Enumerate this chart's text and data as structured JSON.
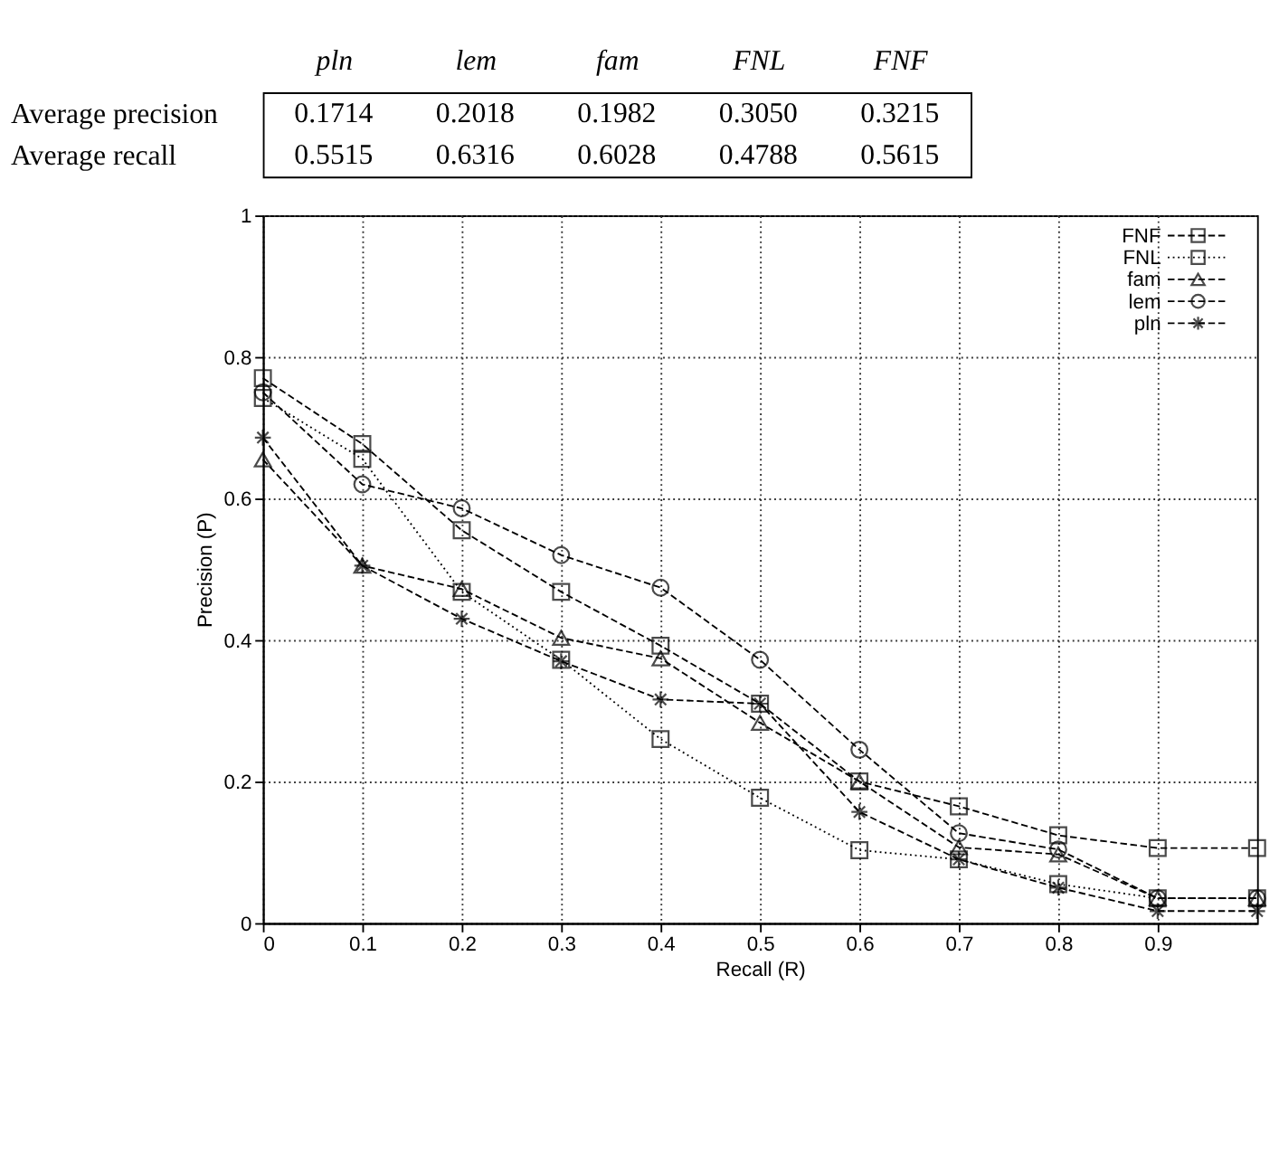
{
  "chart_data": [
    {
      "type": "other",
      "categories": [
        "pln",
        "lem",
        "fam",
        "FNL",
        "FNF"
      ],
      "y_categories": [
        "Average precision",
        "Average recall"
      ],
      "annotations": [
        "0.1714",
        "0.2018",
        "0.1982",
        "0.3050",
        "0.3215",
        "0.5515",
        "0.6316",
        "0.6028",
        "0.4788",
        "0.5615"
      ]
    },
    {
      "type": "line",
      "xlabel": "Recall (R)",
      "ylabel": "Precision (P)",
      "xlim": [
        0,
        1
      ],
      "ylim": [
        0,
        1
      ],
      "xticks": [
        0,
        0.1,
        0.2,
        0.3,
        0.4,
        0.5,
        0.6,
        0.7,
        0.8,
        0.9
      ],
      "yticks": [
        0,
        0.2,
        0.4,
        0.6,
        0.8,
        1
      ],
      "grid": true,
      "legend": "top right",
      "x": [
        0,
        0.1,
        0.2,
        0.3,
        0.4,
        0.5,
        0.6,
        0.7,
        0.8,
        0.9,
        1.0
      ],
      "series": [
        {
          "name": "FNF",
          "color": "#000000",
          "marker": "square",
          "line_style": "dashed",
          "values": [
            0.77,
            0.677,
            0.555,
            0.468,
            0.392,
            0.31,
            0.2,
            0.165,
            0.124,
            0.106,
            0.106
          ]
        },
        {
          "name": "FNL",
          "color": "#000000",
          "marker": "square",
          "line_style": "dotted",
          "values": [
            0.742,
            0.656,
            0.468,
            0.372,
            0.26,
            0.177,
            0.103,
            0.09,
            0.055,
            0.035,
            0.035
          ]
        },
        {
          "name": "fam",
          "color": "#000000",
          "marker": "triangle",
          "line_style": "dashed",
          "values": [
            0.655,
            0.505,
            0.472,
            0.403,
            0.374,
            0.283,
            0.2,
            0.107,
            0.097,
            0.035,
            0.035
          ]
        },
        {
          "name": "lem",
          "color": "#000000",
          "marker": "circle",
          "line_style": "dashed",
          "values": [
            0.75,
            0.62,
            0.586,
            0.52,
            0.474,
            0.372,
            0.245,
            0.127,
            0.104,
            0.035,
            0.035
          ]
        },
        {
          "name": "pln",
          "color": "#000000",
          "marker": "cross",
          "line_style": "dashed",
          "values": [
            0.686,
            0.505,
            0.43,
            0.37,
            0.316,
            0.31,
            0.157,
            0.09,
            0.05,
            0.017,
            0.017
          ]
        }
      ]
    }
  ]
}
